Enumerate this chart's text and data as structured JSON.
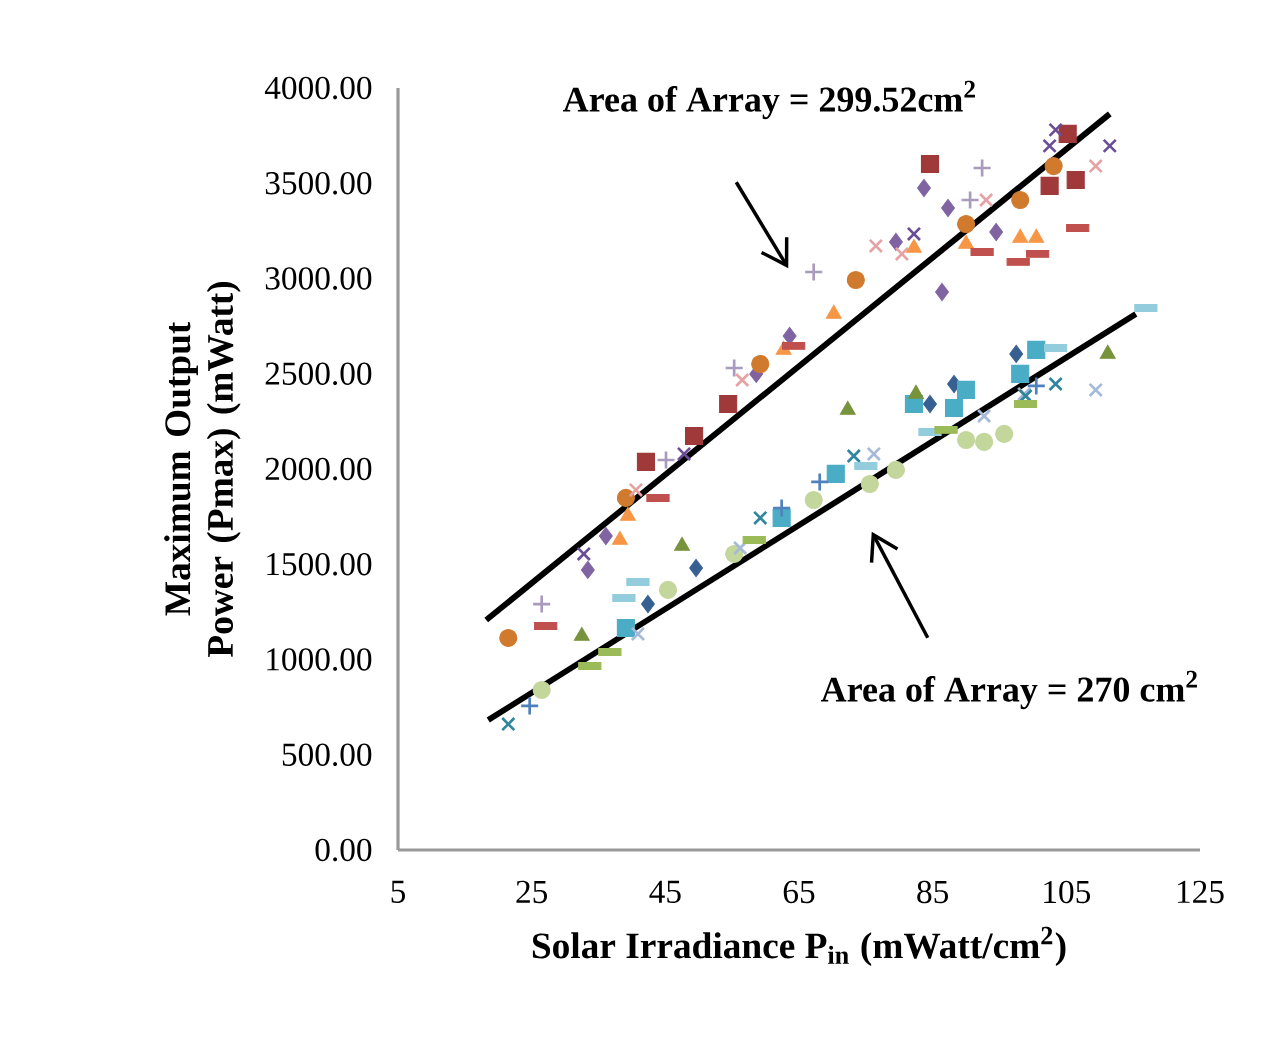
{
  "chart_data": {
    "type": "scatter",
    "xlabel": "Solar Irradiance P$_{in}$ (mWatt/cm$^{2}$)",
    "ylabel": "Maximum Output Power (Pmax) (mWatt)",
    "xlim": [
      5,
      125
    ],
    "xticks": [
      5,
      25,
      45,
      65,
      85,
      105,
      125
    ],
    "ylim": [
      0,
      4000
    ],
    "yticks": [
      {
        "value": 0,
        "label": "0.00"
      },
      {
        "value": 500,
        "label": "500.00"
      },
      {
        "value": 1000,
        "label": "1000.00"
      },
      {
        "value": 1500,
        "label": "1500.00"
      },
      {
        "value": 2000,
        "label": "2000.00"
      },
      {
        "value": 2500,
        "label": "2500.00"
      },
      {
        "value": 3000,
        "label": "3000.00"
      },
      {
        "value": 3500,
        "label": "3500.00"
      },
      {
        "value": 4000,
        "label": "4000.00"
      }
    ],
    "series": [
      {
        "color": "#a0393a",
        "marker": "square",
        "x": [
          42.1,
          49.3,
          54.4,
          84.6,
          102.5,
          106.4,
          105.2
        ],
        "values": [
          2037,
          2173,
          2341,
          3601,
          3486,
          3517,
          3759
        ]
      },
      {
        "color": "#8064a2",
        "marker": "diamond",
        "x": [
          83.7,
          87.3,
          86.4,
          79.5,
          94.5,
          63.6,
          58.6,
          33.4,
          36.1
        ],
        "values": [
          3475,
          3370,
          2929,
          3192,
          3244,
          2698,
          2499,
          1470,
          1648
        ]
      },
      {
        "color": "#d07a2e",
        "marker": "circle",
        "x": [
          73.5,
          59.2,
          90,
          98.1,
          103.1,
          39.1,
          21.5
        ],
        "values": [
          2992,
          2551,
          3286,
          3412,
          3590,
          1848,
          1113
        ]
      },
      {
        "color": "#f79646",
        "marker": "triangle",
        "x": [
          70.2,
          62.7,
          82.2,
          90,
          98.1,
          100.5,
          39.4,
          38.2
        ],
        "values": [
          2814,
          2625,
          3160,
          3181,
          3213,
          3213,
          1753,
          1627
        ]
      },
      {
        "color": "#c0504d",
        "marker": "square",
        "x": [
          106.7,
          97.8,
          100.7,
          92.4,
          27.1,
          43.9,
          64.2
        ],
        "values": [
          3265,
          3087,
          3129,
          3139,
          1176,
          1848,
          2646
        ]
      },
      {
        "color": "#a99bbd",
        "marker": "plus",
        "x": [
          67.2,
          92.4,
          90.6,
          55.3,
          26.5,
          45.1
        ],
        "values": [
          3034,
          3580,
          3412,
          2530,
          1291,
          2047
        ]
      },
      {
        "color": "#e6a3a3",
        "marker": "cross",
        "x": [
          109.4,
          93,
          76.5,
          80.4,
          56.5,
          40.6
        ],
        "values": [
          3590,
          3412,
          3171,
          3129,
          2467,
          1890
        ]
      },
      {
        "color": "#6a4d96",
        "marker": "cross",
        "x": [
          103.4,
          111.5,
          102.5,
          82.2,
          47.8,
          32.8
        ],
        "values": [
          3780,
          3696,
          3696,
          3234,
          2079,
          1554
        ]
      },
      {
        "color": "#376092",
        "marker": "diamond",
        "x": [
          97.5,
          88.2,
          84.6,
          49.6,
          42.4
        ],
        "values": [
          2604,
          2446,
          2341,
          1480,
          1291
        ]
      },
      {
        "color": "#4bacc6",
        "marker": "square",
        "x": [
          98.1,
          90,
          82.2,
          88.2,
          100.5,
          70.5,
          62.4,
          39.1
        ],
        "values": [
          2499,
          2415,
          2341,
          2320,
          2625,
          1974,
          1743,
          1165
        ]
      },
      {
        "color": "#77933c",
        "marker": "triangle",
        "x": [
          72.3,
          111.2,
          47.5,
          32.5,
          82.5
        ],
        "values": [
          2310,
          2604,
          1596,
          1123,
          2394
        ]
      },
      {
        "color": "#c3d69b",
        "marker": "circle",
        "x": [
          95.7,
          92.7,
          90,
          79.5,
          75.6,
          67.2,
          55.3,
          45.4,
          26.5
        ],
        "values": [
          2184,
          2142,
          2152,
          1995,
          1921,
          1837,
          1554,
          1365,
          840
        ]
      },
      {
        "color": "#a5b9d8",
        "marker": "cross",
        "x": [
          109.4,
          98.7,
          92.7,
          76.2,
          56.2,
          40.9
        ],
        "values": [
          2415,
          2394,
          2278,
          2079,
          1585,
          1134
        ]
      },
      {
        "color": "#31859c",
        "marker": "cross",
        "x": [
          21.5,
          59.2,
          73.2,
          103.4,
          98.9
        ],
        "values": [
          661,
          1743,
          2068,
          2446,
          2383
        ]
      },
      {
        "color": "#93cddd",
        "marker": "square",
        "x": [
          116.9,
          103.4,
          84.6,
          40.9,
          38.8,
          75
        ],
        "values": [
          2845,
          2635,
          2194,
          1407,
          1323,
          2016
        ]
      },
      {
        "color": "#4f81bd",
        "marker": "plus",
        "x": [
          68.1,
          62.4,
          100.5,
          24.7
        ],
        "values": [
          1932,
          1795,
          2436,
          756
        ]
      },
      {
        "color": "#9bbb59",
        "marker": "square",
        "x": [
          33.7,
          36.7,
          58.3,
          87,
          98.9
        ],
        "values": [
          966,
          1039,
          1627,
          2205,
          2341
        ]
      },
      {
        "type": "line",
        "color": "#000000",
        "line_style": "solid",
        "x": [
          18.2,
          111.5
        ],
        "values": [
          1207,
          3864
        ]
      },
      {
        "type": "line",
        "color": "#000000",
        "line_style": "solid",
        "x": [
          18.5,
          115.4
        ],
        "values": [
          682,
          2814
        ]
      }
    ],
    "annotations": [
      "Area of Array = 299.52cm$^{2}$",
      "Area of Array = 270 cm$^{2}$"
    ]
  }
}
